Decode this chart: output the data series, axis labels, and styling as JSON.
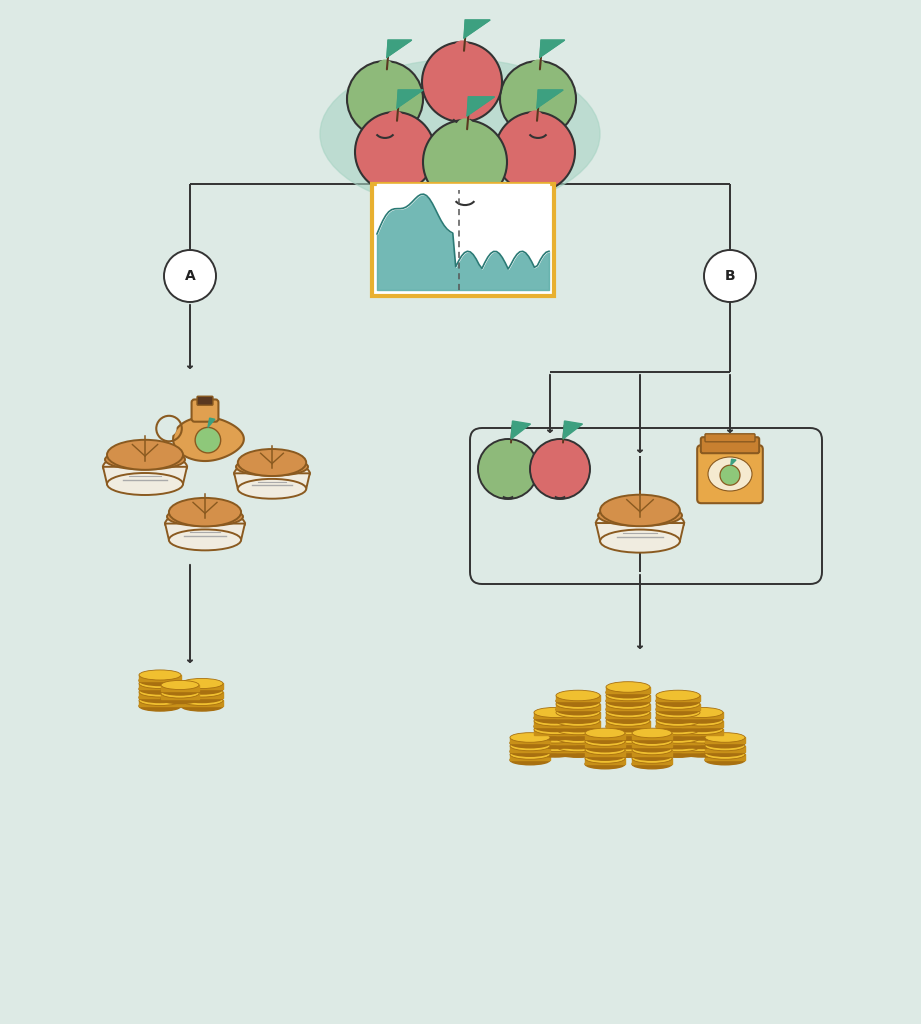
{
  "bg_color": "#ddeae5",
  "line_color": "#333333",
  "path_A_label": "A",
  "path_B_label": "B",
  "apple_green": "#8eba7a",
  "apple_red": "#d96b6b",
  "apple_outline": "#333333",
  "leaf_color": "#3da080",
  "stem_color": "#5a3820",
  "oval_bg": "#a8d4c4",
  "chart_border": "#e8b030",
  "chart_fill": "#5aada8",
  "chart_line": "#2a7a75",
  "jug_color": "#e0a050",
  "jug_outline": "#8a5a20",
  "pie_top": "#d4904a",
  "pie_dish": "#f0ece0",
  "pie_outline": "#8a5a20",
  "jar_body": "#e8a848",
  "jar_lid": "#c88030",
  "jar_outline": "#8a5a20",
  "coin_top": "#f0c030",
  "coin_side": "#c89018",
  "coin_dark": "#a87010",
  "circle_bg": "#ffffff",
  "rounded_box_color": "#333333"
}
